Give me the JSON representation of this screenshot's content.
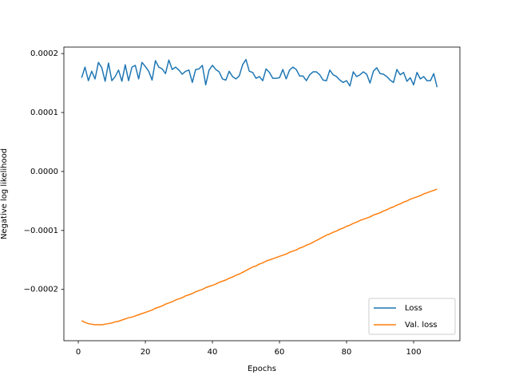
{
  "chart_data": {
    "type": "line",
    "x_label": "Epochs",
    "y_label": "Negative log likelihood",
    "x": [
      1,
      2,
      3,
      4,
      5,
      6,
      7,
      8,
      9,
      10,
      11,
      12,
      13,
      14,
      15,
      16,
      17,
      18,
      19,
      20,
      21,
      22,
      23,
      24,
      25,
      26,
      27,
      28,
      29,
      30,
      31,
      32,
      33,
      34,
      35,
      36,
      37,
      38,
      39,
      40,
      41,
      42,
      43,
      44,
      45,
      46,
      47,
      48,
      49,
      50,
      51,
      52,
      53,
      54,
      55,
      56,
      57,
      58,
      59,
      60,
      61,
      62,
      63,
      64,
      65,
      66,
      67,
      68,
      69,
      70,
      71,
      72,
      73,
      74,
      75,
      76,
      77,
      78,
      79,
      80,
      81,
      82,
      83,
      84,
      85,
      86,
      87,
      88,
      89,
      90,
      91,
      92,
      93,
      94,
      95,
      96,
      97,
      98,
      99,
      100,
      101,
      102,
      103,
      104,
      105,
      106,
      107
    ],
    "series": [
      {
        "name": "Loss",
        "color": "#1f77b4",
        "values": [
          0.000159,
          0.000177,
          0.000154,
          0.00017,
          0.000157,
          0.000185,
          0.000176,
          0.000153,
          0.000184,
          0.000154,
          0.000161,
          0.000172,
          0.000153,
          0.000181,
          0.000154,
          0.000177,
          0.00018,
          0.000157,
          0.000185,
          0.000178,
          0.00017,
          0.000155,
          0.000188,
          0.000177,
          0.000174,
          0.000166,
          0.000189,
          0.000173,
          0.000177,
          0.000172,
          0.000165,
          0.00017,
          0.000172,
          0.000151,
          0.000173,
          0.000174,
          0.00018,
          0.000147,
          0.000172,
          0.00018,
          0.000173,
          0.000169,
          0.000157,
          0.000155,
          0.00017,
          0.000161,
          0.000157,
          0.000162,
          0.000181,
          0.00019,
          0.00017,
          0.000168,
          0.000158,
          0.000161,
          0.000154,
          0.000174,
          0.000168,
          0.000158,
          0.000158,
          0.000159,
          0.000173,
          0.000157,
          0.000172,
          0.000177,
          0.000173,
          0.000162,
          0.000162,
          0.000154,
          0.000164,
          0.000169,
          0.000169,
          0.000164,
          0.000155,
          0.000154,
          0.000172,
          0.000164,
          0.000161,
          0.000155,
          0.000151,
          0.000154,
          0.000145,
          0.000169,
          0.000161,
          0.000164,
          0.000169,
          0.000165,
          0.00015,
          0.00017,
          0.000176,
          0.000166,
          0.000165,
          0.000161,
          0.000155,
          0.000151,
          0.000173,
          0.000164,
          0.000168,
          0.000153,
          0.000159,
          0.000147,
          0.000168,
          0.000157,
          0.000161,
          0.000154,
          0.000154,
          0.000166,
          0.000143
        ]
      },
      {
        "name": "Val. loss",
        "color": "#ff7f0e",
        "values": [
          -0.000253,
          -0.000256,
          -0.000258,
          -0.000259,
          -0.00026,
          -0.00026,
          -0.00026,
          -0.000259,
          -0.000258,
          -0.000257,
          -0.000255,
          -0.000254,
          -0.000252,
          -0.00025,
          -0.000248,
          -0.000247,
          -0.000245,
          -0.000243,
          -0.000241,
          -0.000239,
          -0.000237,
          -0.000235,
          -0.000232,
          -0.00023,
          -0.000228,
          -0.000225,
          -0.000223,
          -0.000221,
          -0.000218,
          -0.000216,
          -0.000214,
          -0.000211,
          -0.000209,
          -0.000207,
          -0.000204,
          -0.000202,
          -0.0002,
          -0.000197,
          -0.000195,
          -0.000193,
          -0.000191,
          -0.000188,
          -0.000186,
          -0.000184,
          -0.000181,
          -0.000179,
          -0.000176,
          -0.000174,
          -0.000171,
          -0.000168,
          -0.000165,
          -0.000162,
          -0.00016,
          -0.000157,
          -0.000155,
          -0.000152,
          -0.00015,
          -0.000148,
          -0.000146,
          -0.000144,
          -0.000142,
          -0.00014,
          -0.000137,
          -0.000135,
          -0.000133,
          -0.00013,
          -0.000128,
          -0.000125,
          -0.000123,
          -0.00012,
          -0.000117,
          -0.000114,
          -0.000111,
          -0.000108,
          -0.000106,
          -0.000103,
          -0.000101,
          -9.8e-05,
          -9.6e-05,
          -9.3e-05,
          -9.1e-05,
          -8.8e-05,
          -8.6e-05,
          -8.3e-05,
          -8.1e-05,
          -7.9e-05,
          -7.7e-05,
          -7.4e-05,
          -7.2e-05,
          -7e-05,
          -6.7e-05,
          -6.5e-05,
          -6.2e-05,
          -6e-05,
          -5.7e-05,
          -5.5e-05,
          -5.2e-05,
          -5e-05,
          -4.7e-05,
          -4.5e-05,
          -4.3e-05,
          -4.1e-05,
          -3.8e-05,
          -3.6e-05,
          -3.4e-05,
          -3.2e-05,
          -3e-05
        ]
      }
    ],
    "xlim": [
      -4.3,
      113.8
    ],
    "xticks": [
      0,
      20,
      40,
      60,
      80,
      100
    ],
    "ylim": [
      -0.000287,
      0.000211
    ],
    "yticks": [
      {
        "value": -0.0002,
        "label": "−0.0002"
      },
      {
        "value": -0.0001,
        "label": "−0.0001"
      },
      {
        "value": 0,
        "label": "0.0000"
      },
      {
        "value": 0.0001,
        "label": "0.0001"
      },
      {
        "value": 0.0002,
        "label": "0.0002"
      }
    ],
    "legend": "lower right",
    "grid": false
  }
}
